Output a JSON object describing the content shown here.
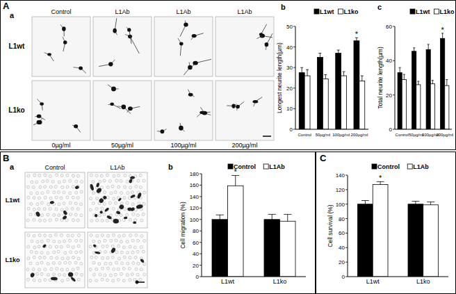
{
  "figure": {
    "panels": [
      {
        "label": "A",
        "sublabel": "a",
        "columns": [
          "Control",
          "L1Ab",
          "L1Ab",
          "L1Ab"
        ],
        "rows": [
          "L1wt",
          "L1ko"
        ],
        "column_footers": [
          "0µg/ml",
          "50µg/ml",
          "100µg/ml",
          "200µg/ml"
        ]
      },
      {
        "label": "B",
        "sublabel": "a",
        "columns": [
          "Control",
          "L1Ab"
        ],
        "rows": [
          "L1wt",
          "L1ko"
        ]
      }
    ]
  },
  "chart_data": [
    {
      "type": "bar",
      "title": "b",
      "y_label": "Longest neurite length(µm)",
      "categories": [
        "Control",
        "50µg/ml",
        "100µg/ml",
        "200µg/ml"
      ],
      "series": [
        {
          "name": "L1wt",
          "color": "#000000",
          "values": [
            27.5,
            35,
            37,
            43
          ],
          "errors": [
            2.5,
            2,
            1.5,
            1.5
          ]
        },
        {
          "name": "L1ko",
          "color": "#ffffff",
          "values": [
            26,
            24.5,
            26,
            23.5
          ],
          "errors": [
            3,
            2,
            2,
            2.5
          ]
        }
      ],
      "ylim": [
        0,
        50
      ],
      "yticks": [
        0,
        10,
        20,
        30,
        40,
        50
      ],
      "legend": "top",
      "annotations": [
        {
          "text": "*",
          "series": 0,
          "category": 3
        }
      ]
    },
    {
      "type": "bar",
      "title": "c",
      "y_label": "Total neurite length(µm)",
      "categories": [
        "Control",
        "50µg/ml",
        "100µg/ml",
        "200µg/ml"
      ],
      "series": [
        {
          "name": "L1wt",
          "color": "#000000",
          "values": [
            33,
            45.5,
            46.5,
            53
          ],
          "errors": [
            3,
            2,
            3,
            3
          ]
        },
        {
          "name": "L1ko",
          "color": "#ffffff",
          "values": [
            29,
            26,
            26.5,
            25.5
          ],
          "errors": [
            3,
            2,
            2,
            3.5
          ]
        }
      ],
      "ylim": [
        0,
        60
      ],
      "yticks": [
        0,
        20,
        40,
        60
      ],
      "legend": "top",
      "annotations": [
        {
          "text": "*",
          "series": 0,
          "category": 3
        }
      ]
    },
    {
      "type": "bar",
      "title": "b",
      "y_label": "Cell migration (%)",
      "categories": [
        "L1wt",
        "L1ko"
      ],
      "series": [
        {
          "name": "Control",
          "color": "#000000",
          "values": [
            100,
            100
          ],
          "errors": [
            8,
            9
          ]
        },
        {
          "name": "L1Ab",
          "color": "#ffffff",
          "values": [
            159,
            97
          ],
          "errors": [
            18,
            12
          ]
        }
      ],
      "ylim": [
        0,
        180
      ],
      "yticks": [
        0,
        20,
        40,
        60,
        80,
        100,
        120,
        140,
        160,
        180
      ],
      "legend": "top",
      "annotations": [
        {
          "text": "*",
          "series": 1,
          "category": 0
        }
      ]
    },
    {
      "type": "bar",
      "title": "C",
      "y_label": "Cell survival (%)",
      "categories": [
        "L1wt",
        "L1ko"
      ],
      "series": [
        {
          "name": "Control",
          "color": "#000000",
          "values": [
            100,
            100
          ],
          "errors": [
            5,
            4
          ]
        },
        {
          "name": "L1Ab",
          "color": "#ffffff",
          "values": [
            127,
            99
          ],
          "errors": [
            4,
            4
          ]
        }
      ],
      "ylim": [
        0,
        140
      ],
      "yticks": [
        0,
        20,
        40,
        60,
        80,
        100,
        120,
        140
      ],
      "legend": "top",
      "annotations": [
        {
          "text": "*",
          "series": 1,
          "category": 0
        }
      ]
    }
  ]
}
